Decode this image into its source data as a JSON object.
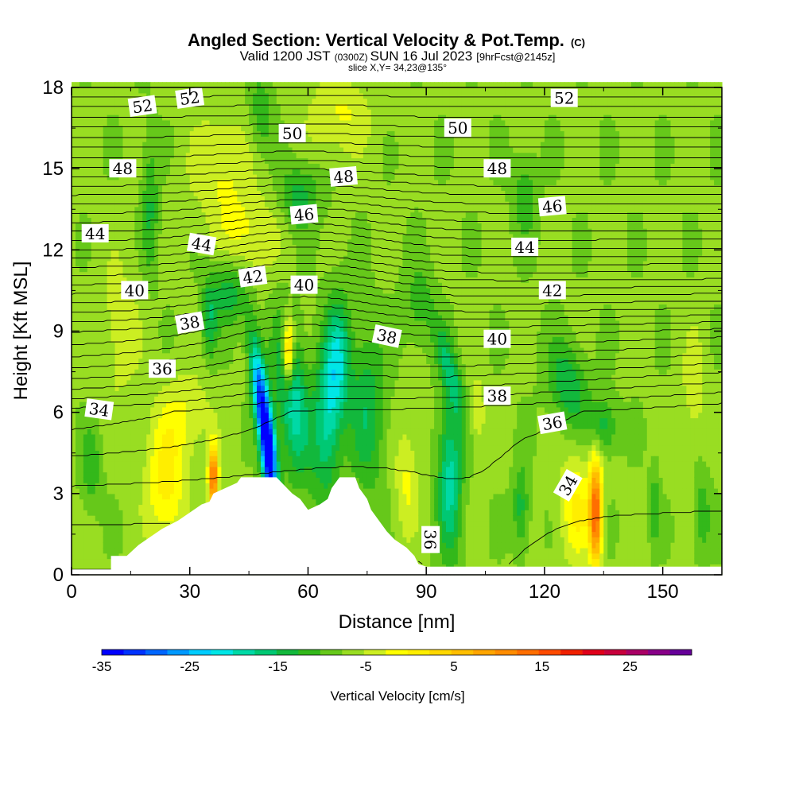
{
  "title": {
    "main": "Angled Section: Vertical Velocity & Pot.Temp.",
    "main_mark": "(C)",
    "line2_a": "Valid 1200 JST",
    "line2_b": "(0300Z)",
    "line2_c": "SUN 16 Jul 2023",
    "line2_d": "[9hrFcst@2145z]",
    "line3": "slice X,Y= 34,23@135°"
  },
  "chart_data": {
    "type": "heatmap",
    "xlabel": "Distance [nm]",
    "ylabel": "Height [Kft MSL]",
    "xlim": [
      0,
      165
    ],
    "ylim": [
      0,
      18
    ],
    "x_ticks": [
      0,
      30,
      60,
      90,
      120,
      150
    ],
    "y_ticks": [
      0,
      3,
      6,
      9,
      12,
      15,
      18
    ],
    "colorbar": {
      "label": "Vertical Velocity [cm/s]",
      "ticks": [
        -35,
        -25,
        -15,
        -5,
        5,
        15,
        25
      ],
      "range": [
        -35,
        32
      ],
      "step": 3,
      "colors": [
        "#0000ff",
        "#0033ff",
        "#0066ff",
        "#0099ff",
        "#00ccff",
        "#00e6e6",
        "#00d9a6",
        "#00c873",
        "#12b83c",
        "#33b81a",
        "#66c81a",
        "#99dd22",
        "#ccee22",
        "#ffff00",
        "#ffee00",
        "#ffd700",
        "#ffbe00",
        "#ffa500",
        "#ff8c00",
        "#ff6e00",
        "#ff4b00",
        "#f02000",
        "#e0001a",
        "#c8003c",
        "#aa0066",
        "#880088",
        "#660099"
      ]
    },
    "terrain": [
      [
        0,
        0.2
      ],
      [
        10,
        0.2
      ],
      [
        10,
        0.7
      ],
      [
        14,
        0.7
      ],
      [
        17,
        1.1
      ],
      [
        20,
        1.4
      ],
      [
        23,
        1.7
      ],
      [
        27,
        2.0
      ],
      [
        30,
        2.3
      ],
      [
        33,
        2.6
      ],
      [
        35,
        2.7
      ],
      [
        36,
        3.0
      ],
      [
        39,
        3.2
      ],
      [
        42,
        3.4
      ],
      [
        43,
        3.6
      ],
      [
        47,
        3.6
      ],
      [
        50,
        3.6
      ],
      [
        52,
        3.6
      ],
      [
        54,
        3.3
      ],
      [
        56,
        3.0
      ],
      [
        58,
        2.8
      ],
      [
        60,
        2.4
      ],
      [
        63,
        2.6
      ],
      [
        65,
        2.8
      ],
      [
        66,
        3.2
      ],
      [
        68,
        3.6
      ],
      [
        72,
        3.6
      ],
      [
        73,
        3.2
      ],
      [
        75,
        2.8
      ],
      [
        76,
        2.4
      ],
      [
        78,
        2.0
      ],
      [
        80,
        1.6
      ],
      [
        82,
        1.3
      ],
      [
        85,
        1.0
      ],
      [
        87,
        0.7
      ],
      [
        88,
        0.4
      ],
      [
        90,
        0.3
      ],
      [
        165,
        0.3
      ]
    ],
    "w_features": [
      {
        "x": 49,
        "z": 5.6,
        "sx": 2.0,
        "sz": 2.8,
        "w": -36,
        "tilt": -0.22
      },
      {
        "x": 50,
        "z": 4.2,
        "sx": 1.6,
        "sz": 1.2,
        "w": -12,
        "tilt": 0
      },
      {
        "x": 56,
        "z": 6.5,
        "sx": 4.0,
        "sz": 2.8,
        "w": -15,
        "tilt": -0.15
      },
      {
        "x": 65,
        "z": 6.0,
        "sx": 3.5,
        "sz": 3.0,
        "w": -14,
        "tilt": 0.05
      },
      {
        "x": 68,
        "z": 8.0,
        "sx": 3.0,
        "sz": 2.2,
        "w": -11,
        "tilt": 0
      },
      {
        "x": 75,
        "z": 6.0,
        "sx": 4.5,
        "sz": 3.0,
        "w": -9,
        "tilt": 0
      },
      {
        "x": 96,
        "z": 3.5,
        "sx": 3.0,
        "sz": 2.8,
        "w": -14,
        "tilt": 0
      },
      {
        "x": 96,
        "z": 7.5,
        "sx": 2.5,
        "sz": 1.8,
        "w": -10,
        "tilt": -0.4
      },
      {
        "x": 114,
        "z": 2.5,
        "sx": 2.0,
        "sz": 1.5,
        "w": -8,
        "tilt": 0
      },
      {
        "x": 126,
        "z": 7.0,
        "sx": 5.0,
        "sz": 1.6,
        "w": -9,
        "tilt": -0.25
      },
      {
        "x": 135,
        "z": 5.5,
        "sx": 3.5,
        "sz": 1.0,
        "w": -8,
        "tilt": 0
      },
      {
        "x": 40,
        "z": 10.5,
        "sx": 4.0,
        "sz": 1.2,
        "w": -9,
        "tilt": 0
      },
      {
        "x": 35,
        "z": 9.5,
        "sx": 2.0,
        "sz": 1.5,
        "w": -9,
        "tilt": 0
      },
      {
        "x": 20,
        "z": 13.5,
        "sx": 2.0,
        "sz": 2.5,
        "w": -7,
        "tilt": 0
      },
      {
        "x": 58,
        "z": 14.0,
        "sx": 5.0,
        "sz": 1.2,
        "w": -8,
        "tilt": 0
      },
      {
        "x": 48,
        "z": 17.0,
        "sx": 3.0,
        "sz": 1.5,
        "w": -6,
        "tilt": 0
      },
      {
        "x": 115,
        "z": 14.0,
        "sx": 3.0,
        "sz": 1.5,
        "w": -6,
        "tilt": 0
      },
      {
        "x": 88,
        "z": 10.0,
        "sx": 4.0,
        "sz": 1.5,
        "w": -5,
        "tilt": 0
      },
      {
        "x": 5,
        "z": 4.0,
        "sx": 2.5,
        "sz": 1.5,
        "w": -6,
        "tilt": 0
      },
      {
        "x": 148,
        "z": 2.5,
        "sx": 1.2,
        "sz": 1.5,
        "w": -6,
        "tilt": 0
      },
      {
        "x": 160,
        "z": 2.2,
        "sx": 2.0,
        "sz": 1.5,
        "w": -6,
        "tilt": 0
      },
      {
        "x": 36,
        "z": 3.6,
        "sx": 1.2,
        "sz": 1.2,
        "w": 26,
        "tilt": 0
      },
      {
        "x": 55,
        "z": 8.2,
        "sx": 1.4,
        "sz": 1.3,
        "w": 22,
        "tilt": 0
      },
      {
        "x": 133,
        "z": 2.3,
        "sx": 1.6,
        "sz": 2.0,
        "w": 26,
        "tilt": 0
      },
      {
        "x": 128,
        "z": 2.5,
        "sx": 4.0,
        "sz": 2.0,
        "w": 9,
        "tilt": 0
      },
      {
        "x": 24,
        "z": 3.5,
        "sx": 5.0,
        "sz": 2.5,
        "w": 10,
        "tilt": 0
      },
      {
        "x": 30,
        "z": 6.0,
        "sx": 6.0,
        "sz": 1.5,
        "w": 5,
        "tilt": 0
      },
      {
        "x": 45,
        "z": 12.5,
        "sx": 8.0,
        "sz": 1.5,
        "w": 6,
        "tilt": 0
      },
      {
        "x": 38,
        "z": 15.0,
        "sx": 8.0,
        "sz": 2.0,
        "w": 6,
        "tilt": 0
      },
      {
        "x": 68,
        "z": 17.0,
        "sx": 8.0,
        "sz": 1.5,
        "w": 6,
        "tilt": 0
      },
      {
        "x": 85,
        "z": 3.5,
        "sx": 3.0,
        "sz": 2.0,
        "w": 6,
        "tilt": 0
      },
      {
        "x": 12,
        "z": 9.0,
        "sx": 6.0,
        "sz": 3.0,
        "w": 4,
        "tilt": 0
      },
      {
        "x": 158,
        "z": 7.0,
        "sx": 3.0,
        "sz": 2.0,
        "w": 5,
        "tilt": 0
      },
      {
        "x": 103,
        "z": 6.0,
        "sx": 2.0,
        "sz": 1.5,
        "w": 5,
        "tilt": 0
      }
    ],
    "isentropes": {
      "theta_start": 33,
      "theta_end": 54,
      "labels": [
        {
          "t": 52,
          "x": 18,
          "z": 17.3,
          "rot": -8
        },
        {
          "t": 52,
          "x": 30,
          "z": 17.6,
          "rot": -8
        },
        {
          "t": 52,
          "x": 125,
          "z": 17.6,
          "rot": 0
        },
        {
          "t": 50,
          "x": 56,
          "z": 16.3,
          "rot": 0
        },
        {
          "t": 50,
          "x": 98,
          "z": 16.5,
          "rot": 0
        },
        {
          "t": 48,
          "x": 13,
          "z": 15.0,
          "rot": 0
        },
        {
          "t": 48,
          "x": 69,
          "z": 14.7,
          "rot": -5
        },
        {
          "t": 48,
          "x": 108,
          "z": 15.0,
          "rot": 0
        },
        {
          "t": 46,
          "x": 59,
          "z": 13.3,
          "rot": -5
        },
        {
          "t": 46,
          "x": 122,
          "z": 13.6,
          "rot": -5
        },
        {
          "t": 44,
          "x": 6,
          "z": 12.6,
          "rot": 0
        },
        {
          "t": 44,
          "x": 33,
          "z": 12.2,
          "rot": 10
        },
        {
          "t": 44,
          "x": 115,
          "z": 12.1,
          "rot": 0
        },
        {
          "t": 42,
          "x": 46,
          "z": 11.0,
          "rot": -8
        },
        {
          "t": 42,
          "x": 122,
          "z": 10.5,
          "rot": 0
        },
        {
          "t": 40,
          "x": 16,
          "z": 10.5,
          "rot": 0
        },
        {
          "t": 40,
          "x": 59,
          "z": 10.7,
          "rot": 0
        },
        {
          "t": 40,
          "x": 108,
          "z": 8.7,
          "rot": 0
        },
        {
          "t": 38,
          "x": 30,
          "z": 9.3,
          "rot": -10
        },
        {
          "t": 38,
          "x": 80,
          "z": 8.8,
          "rot": 12
        },
        {
          "t": 38,
          "x": 108,
          "z": 6.6,
          "rot": 0
        },
        {
          "t": 36,
          "x": 23,
          "z": 7.6,
          "rot": 0
        },
        {
          "t": 36,
          "x": 122,
          "z": 5.6,
          "rot": -10
        },
        {
          "t": 36,
          "x": 91,
          "z": 1.3,
          "rot": 90
        },
        {
          "t": 34,
          "x": 7,
          "z": 6.1,
          "rot": 8
        },
        {
          "t": 34,
          "x": 126,
          "z": 3.3,
          "rot": -60
        }
      ]
    }
  }
}
